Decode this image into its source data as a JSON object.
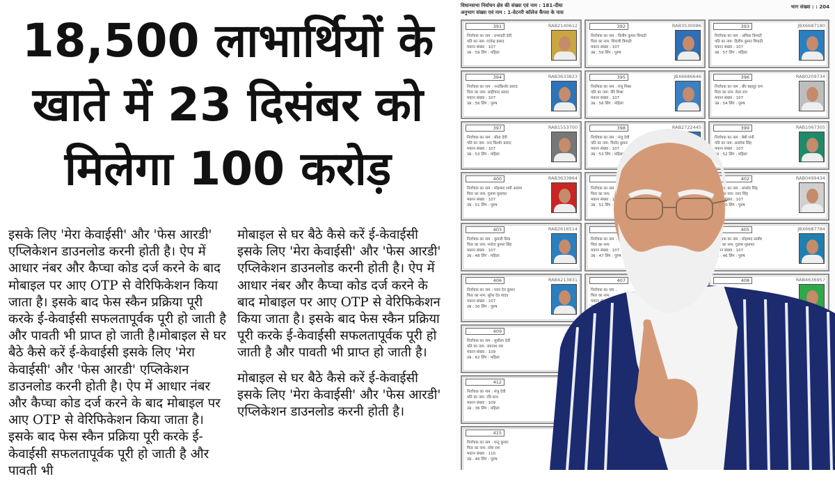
{
  "headline": {
    "lines": [
      "18,500 लाभार्थियों के",
      "खाते में 23 दिसंबर को",
      "मिलेगा 100 करोड़"
    ]
  },
  "article": {
    "column1": [
      "इसके लिए 'मेरा केवाईसी' और 'फेस आरडी' एप्लिकेशन डाउनलोड करनी होती है। ऐप में आधार नंबर और कैप्चा कोड दर्ज करने के बाद मोबाइल पर आए OTP से वेरिफिकेशन किया जाता है। इसके बाद फेस स्कैन प्रक्रिया पूरी करके ई-केवाईसी सफलतापूर्वक पूरी हो जाती है और पावती भी प्राप्त हो जाती है।मोबाइल से घर बैठे कैसे करें ई-केवाईसी इसके लिए 'मेरा केवाईसी' और 'फेस आरडी' एप्लिकेशन डाउनलोड करनी होती है। ऐप में आधार नंबर और कैप्चा कोड दर्ज करने के बाद मोबाइल पर आए OTP से वेरिफिकेशन किया जाता है। इसके बाद फेस स्कैन प्रक्रिया पूरी करके ई-केवाईसी सफलतापूर्वक पूरी हो जाती है और पावती भी"
    ],
    "column2": [
      "मोबाइल से घर बैठे कैसे करें ई-केवाईसी इसके लिए 'मेरा केवाईसी' और 'फेस आरडी' एप्लिकेशन डाउनलोड करनी होती है। ऐप में आधार नंबर और कैप्चा कोड दर्ज करने के बाद मोबाइल पर आए OTP से वेरिफिकेशन किया जाता है। इसके बाद फेस स्कैन प्रक्रिया पूरी करके ई-केवाईसी सफलतापूर्वक पूरी हो जाती है और पावती भी प्राप्त हो जाती है।",
      "मोबाइल से घर बैठे कैसे करें ई-केवाईसी इसके लिए 'मेरा केवाईसी' और 'फेस आरडी' एप्लिकेशन डाउनलोड करनी होती है।"
    ]
  },
  "voter_sheet": {
    "constituency": "विधानसभा निर्वाचन क्षेत्र की संख्या एवं नाम : 181-दीघा",
    "section": "अनुभाग संख्या एवं नाम : 1-वेटनरी कॉलेज कैंपस के पास",
    "part_no": "भाग संख्या : : 204",
    "cards": [
      {
        "no": "391",
        "id": "RAB2140612",
        "name": "निर्वाचक का नाम : प्रभावती देवी",
        "relation": "पति का नाम: राजेन्द्र प्रसाद",
        "house": "मकान संख्या : 107",
        "age_sex": "उम्र : 59 लिंग : महिला",
        "photo_bg": "#c9a640"
      },
      {
        "no": "392",
        "id": "RAB3530086",
        "name": "निर्वाचक का नाम : दिलीप कुमार त्रिपाठी",
        "relation": "पिता का नाम: शिवजी त्रिपाठी",
        "house": "मकान संख्या : 107",
        "age_sex": "उम्र : 59 लिंग : पुरुष",
        "photo_bg": "#2f6fb5"
      },
      {
        "no": "393",
        "id": "JBX6687180",
        "name": "निर्वाचक का नाम : अमिता त्रिपाठी",
        "relation": "पति का नाम: दिलीप कुमार त्रिपाठी",
        "house": "मकान संख्या : 107",
        "age_sex": "उम्र : 57 लिंग : महिला",
        "photo_bg": "#2a7fc0"
      },
      {
        "no": "394",
        "id": "RAB3633823",
        "name": "निर्वाचक का नाम : नन्दकिशोर प्रसाद",
        "relation": "पिता का नाम: साहीचन्द प्रसाद",
        "house": "मकान संख्या : 107",
        "age_sex": "उम्र : 56 लिंग : पुरुष",
        "photo_bg": "#2e74b8"
      },
      {
        "no": "395",
        "id": "JBX6686646",
        "name": "निर्वाचक का नाम : मंजू मिश्रा",
        "relation": "पति का नाम: वीरे मिश्रा",
        "house": "मकान संख्या : 107",
        "age_sex": "उम्र : 56 लिंग : महिला",
        "photo_bg": "#3b80c4"
      },
      {
        "no": "396",
        "id": "RAB0209734",
        "name": "निर्वाचक का नाम : बीर बहादुर राम",
        "relation": "पिता का नाम: तेतर राम",
        "house": "मकान संख्या : 107",
        "age_sex": "उम्र : 54 लिंग : पुरुष",
        "photo_bg": "#bdbdbd"
      },
      {
        "no": "397",
        "id": "RAB1553700",
        "name": "निर्वाचक का नाम : सीता देवी",
        "relation": "पति का नाम: नन्द किशोर प्रसाद",
        "house": "मकान संख्या : 107",
        "age_sex": "उम्र : 53 लिंग : महिला",
        "photo_bg": "#777777"
      },
      {
        "no": "398",
        "id": "RAB2722445",
        "name": "निर्वाचक का नाम : मंजू देवी",
        "relation": "पति का नाम: विनोद कुमार",
        "house": "मकान संख्या : 107",
        "age_sex": "उम्र : 53 लिंग : महिला",
        "photo_bg": "#2e74b8"
      },
      {
        "no": "399",
        "id": "RAB1067305",
        "name": "निर्वाचक का नाम : बेबी रानी",
        "relation": "पति का नाम: आलोक सिंह",
        "house": "मकान संख्या : 107",
        "age_sex": "उम्र : 52 लिंग : महिला",
        "photo_bg": "#1f8a6a"
      },
      {
        "no": "400",
        "id": "RAB3633864",
        "name": "निर्वाचक का नाम : मोहम्मद शमी आलम",
        "relation": "पिता का नाम: गुलाम मुस्तफा",
        "house": "मकान संख्या : 107",
        "age_sex": "उम्र : 51 लिंग : पुरुष",
        "photo_bg": "#c92525"
      },
      {
        "no": "401",
        "id": "",
        "name": "निर्वाचक का नाम :",
        "relation": "पिता का नाम:",
        "house": "मकान संख्या : 107",
        "age_sex": "उम्र : 51 लिंग : पुरुष",
        "photo_bg": "#2e74b8"
      },
      {
        "no": "402",
        "id": "RAB0499434",
        "name": "निर्वाचक का नाम : समशेर सिंह",
        "relation": "पिता का नाम: रतन सिंह",
        "house": "मकान संख्या : 107",
        "age_sex": "उम्र : 50 लिंग : पुरुष",
        "photo_bg": "#d0d0d0"
      },
      {
        "no": "403",
        "id": "RAB2616514",
        "name": "निर्वाचक का नाम : कुमारी प्रिया",
        "relation": "पिता का नाम: मनोज कुमार सिंह",
        "house": "मकान संख्या : 107",
        "age_sex": "उम्र : 48 लिंग : महिला",
        "photo_bg": "#2a7fc0"
      },
      {
        "no": "404",
        "id": "",
        "name": "निर्वाचक का नाम :",
        "relation": "पिता का नाम:",
        "house": "मकान संख्या : 107",
        "age_sex": "उम्र : 47 लिंग : पुरुष",
        "photo_bg": "#2e74b8"
      },
      {
        "no": "405",
        "id": "JBX6687784",
        "name": "निर्वाचक का नाम : मोहम्मद साबीर",
        "relation": "पिता का नाम: गुलाम मुस्तफा",
        "house": "मकान संख्या : 107",
        "age_sex": "उम्र : 46 लिंग : पुरुष",
        "photo_bg": "#1f7fb0"
      },
      {
        "no": "406",
        "id": "RAB4213831",
        "name": "निर्वाचक का नाम : पवन देव कुमार",
        "relation": "पिता का नाम: सुरेश देव यादव",
        "house": "मकान संख्या : 107",
        "age_sex": "उम्र : 30 लिंग : पुरुष",
        "photo_bg": "#2a7fc0"
      },
      {
        "no": "407",
        "id": "",
        "name": "निर्वाचक का नाम :",
        "relation": "पिता का नाम:",
        "house": "मकान संख्या : 107",
        "age_sex": "उम्र : लिंग :",
        "photo_bg": "#2e74b8"
      },
      {
        "no": "408",
        "id": "RAB4636957",
        "name": "निर्वाचक का नाम :",
        "relation": "पिता का नाम:",
        "house": "मकान संख्या : 107",
        "age_sex": "उम्र : लिंग : पुरुष",
        "photo_bg": "#2fa84a"
      },
      {
        "no": "409",
        "id": "",
        "name": "निर्वाचक का नाम : सुशीला देवी",
        "relation": "पति का नाम: जयनाथ राम",
        "house": "मकान संख्या : 109",
        "age_sex": "उम्र : 62 लिंग : महिला",
        "photo_bg": ""
      },
      {
        "no": "412",
        "id": "",
        "name": "निर्वाचक का नाम : मंजू देवी",
        "relation": "पति का नाम: रवि साव",
        "house": "मकान संख्या : 109",
        "age_sex": "उम्र : 36 लिंग : महिला",
        "photo_bg": ""
      },
      {
        "no": "415",
        "id": "",
        "name": "निर्वाचक का नाम : मन्टू कुमार",
        "relation": "पिता का नाम: नरेश राम",
        "house": "मकान संख्या : 110",
        "age_sex": "उम्र : 46 लिंग : पुरुष",
        "photo_bg": ""
      }
    ]
  },
  "colors": {
    "vest": "#1c2a6e",
    "skin": "#d49a78",
    "hair": "#f2f2f2"
  }
}
